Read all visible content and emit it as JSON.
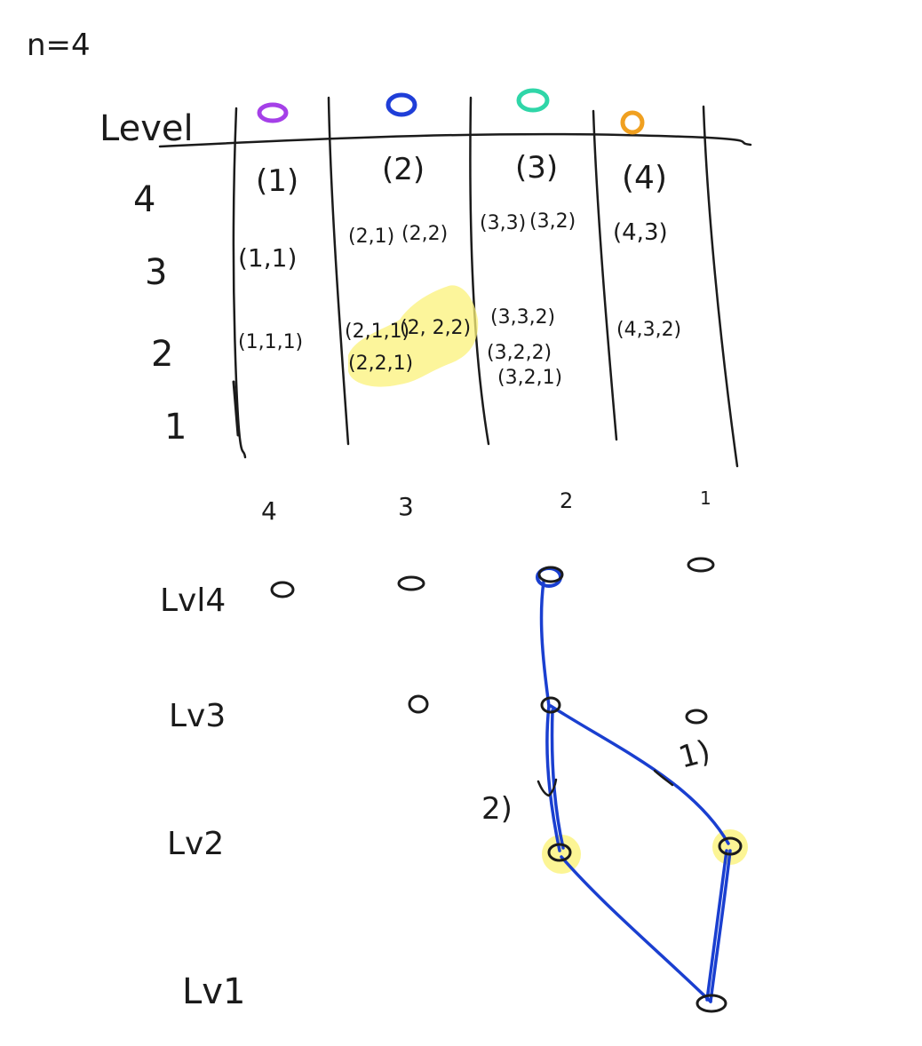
{
  "note": "n=4",
  "table": {
    "header_label": "Level",
    "columns": [
      {
        "dot_color": "#a540e8",
        "header": "(1)",
        "level3": [
          "(1,1)"
        ],
        "level2": [
          "(1,1,1)"
        ]
      },
      {
        "dot_color": "#1f3ed8",
        "header": "(2)",
        "level3": [
          "(2,1)",
          "(2,2)"
        ],
        "level2": [
          "(2,1,1)",
          "(2, 2,2)",
          "(2,2,1)"
        ]
      },
      {
        "dot_color": "#2fd6a8",
        "header": "(3)",
        "level3": [
          "(3,3)",
          "(3,2)"
        ],
        "level2": [
          "(3,3,2)",
          "(3,2,2)",
          "(3,2,1)"
        ]
      },
      {
        "dot_color": "#f0a020",
        "header": "(4)",
        "level3": [
          "(4,3)"
        ],
        "level2": [
          "(4,3,2)"
        ]
      }
    ],
    "row_labels": [
      "4",
      "3",
      "2",
      "1"
    ],
    "highlight_color": "#fbf27a"
  },
  "graph": {
    "column_labels": [
      "4",
      "3",
      "2",
      "1"
    ],
    "level_labels": [
      "Lvl4",
      "Lv3",
      "Lv2",
      "Lv1"
    ],
    "edge_labels": [
      "1)",
      "2)"
    ],
    "edge_color": "#1a3fd0",
    "highlight_color": "#fbf27a"
  }
}
